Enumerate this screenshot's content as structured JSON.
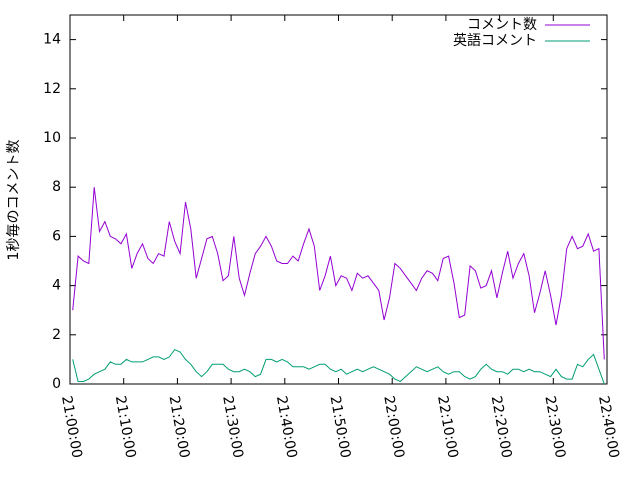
{
  "chart_data": {
    "type": "line",
    "ylabel": "1秒毎のコメント数",
    "x": [
      "21:00:30",
      "21:01:30",
      "21:02:30",
      "21:03:30",
      "21:04:30",
      "21:05:30",
      "21:06:30",
      "21:07:30",
      "21:08:30",
      "21:09:30",
      "21:10:30",
      "21:11:30",
      "21:12:30",
      "21:13:30",
      "21:14:30",
      "21:15:30",
      "21:16:30",
      "21:17:30",
      "21:18:30",
      "21:19:30",
      "21:20:30",
      "21:21:30",
      "21:22:30",
      "21:23:30",
      "21:24:30",
      "21:25:30",
      "21:26:30",
      "21:27:30",
      "21:28:30",
      "21:29:30",
      "21:30:30",
      "21:31:30",
      "21:32:30",
      "21:33:30",
      "21:34:30",
      "21:35:30",
      "21:36:30",
      "21:37:30",
      "21:38:30",
      "21:39:30",
      "21:40:30",
      "21:41:30",
      "21:42:30",
      "21:43:30",
      "21:44:30",
      "21:45:30",
      "21:46:30",
      "21:47:30",
      "21:48:30",
      "21:49:30",
      "21:50:30",
      "21:51:30",
      "21:52:30",
      "21:53:30",
      "21:54:30",
      "21:55:30",
      "21:56:30",
      "21:57:30",
      "21:58:30",
      "21:59:30",
      "22:00:30",
      "22:01:30",
      "22:02:30",
      "22:03:30",
      "22:04:30",
      "22:05:30",
      "22:06:30",
      "22:07:30",
      "22:08:30",
      "22:09:30",
      "22:10:30",
      "22:11:30",
      "22:12:30",
      "22:13:30",
      "22:14:30",
      "22:15:30",
      "22:16:30",
      "22:17:30",
      "22:18:30",
      "22:19:30",
      "22:20:30",
      "22:21:30",
      "22:22:30",
      "22:23:30",
      "22:24:30",
      "22:25:30",
      "22:26:30",
      "22:27:30",
      "22:28:30",
      "22:29:30",
      "22:30:30",
      "22:31:30",
      "22:32:30",
      "22:33:30",
      "22:34:30",
      "22:35:30",
      "22:36:30",
      "22:37:30",
      "22:38:30",
      "22:39:30"
    ],
    "series": [
      {
        "name": "コメント数",
        "color": "#9400d3",
        "values": [
          3.0,
          5.2,
          5.0,
          4.9,
          8.0,
          6.2,
          6.6,
          6.0,
          5.9,
          5.7,
          6.1,
          4.7,
          5.3,
          5.7,
          5.1,
          4.9,
          5.3,
          5.2,
          6.6,
          5.8,
          5.3,
          7.4,
          6.3,
          4.3,
          5.1,
          5.9,
          6.0,
          5.3,
          4.2,
          4.4,
          6.0,
          4.3,
          3.6,
          4.5,
          5.3,
          5.6,
          6.0,
          5.6,
          5.0,
          4.9,
          4.9,
          5.2,
          5.0,
          5.7,
          6.3,
          5.6,
          3.8,
          4.4,
          5.2,
          4.0,
          4.4,
          4.3,
          3.8,
          4.5,
          4.3,
          4.4,
          4.1,
          3.8,
          2.6,
          3.5,
          4.9,
          4.7,
          4.4,
          4.1,
          3.8,
          4.3,
          4.6,
          4.5,
          4.2,
          5.1,
          5.2,
          4.1,
          2.7,
          2.8,
          4.8,
          4.6,
          3.9,
          4.0,
          4.6,
          3.5,
          4.5,
          5.4,
          4.3,
          4.9,
          5.3,
          4.4,
          2.9,
          3.7,
          4.6,
          3.6,
          2.4,
          3.6,
          5.5,
          6.0,
          5.5,
          5.6,
          6.1,
          5.4,
          5.5,
          1.0
        ]
      },
      {
        "name": "英語コメント",
        "color": "#009e73",
        "values": [
          1.0,
          0.1,
          0.1,
          0.2,
          0.4,
          0.5,
          0.6,
          0.9,
          0.8,
          0.8,
          1.0,
          0.9,
          0.9,
          0.9,
          1.0,
          1.1,
          1.1,
          1.0,
          1.1,
          1.4,
          1.3,
          1.0,
          0.8,
          0.5,
          0.3,
          0.5,
          0.8,
          0.8,
          0.8,
          0.6,
          0.5,
          0.5,
          0.6,
          0.5,
          0.3,
          0.4,
          1.0,
          1.0,
          0.9,
          1.0,
          0.9,
          0.7,
          0.7,
          0.7,
          0.6,
          0.7,
          0.8,
          0.8,
          0.6,
          0.5,
          0.6,
          0.4,
          0.5,
          0.6,
          0.5,
          0.6,
          0.7,
          0.6,
          0.5,
          0.4,
          0.2,
          0.1,
          0.3,
          0.5,
          0.7,
          0.6,
          0.5,
          0.6,
          0.7,
          0.5,
          0.4,
          0.5,
          0.5,
          0.3,
          0.2,
          0.3,
          0.6,
          0.8,
          0.6,
          0.5,
          0.5,
          0.4,
          0.6,
          0.6,
          0.5,
          0.6,
          0.5,
          0.5,
          0.4,
          0.3,
          0.6,
          0.3,
          0.2,
          0.2,
          0.8,
          0.7,
          1.0,
          1.2,
          0.6,
          0.0
        ]
      }
    ],
    "xlim": [
      "21:00:00",
      "22:40:00"
    ],
    "xticks": [
      "21:00:00",
      "21:10:00",
      "21:20:00",
      "21:30:00",
      "21:40:00",
      "21:50:00",
      "22:00:00",
      "22:10:00",
      "22:20:00",
      "22:30:00",
      "22:40:00"
    ],
    "ylim": [
      0,
      15
    ],
    "yticks": [
      0,
      2,
      4,
      6,
      8,
      10,
      12,
      14
    ],
    "legend": "top-right"
  }
}
